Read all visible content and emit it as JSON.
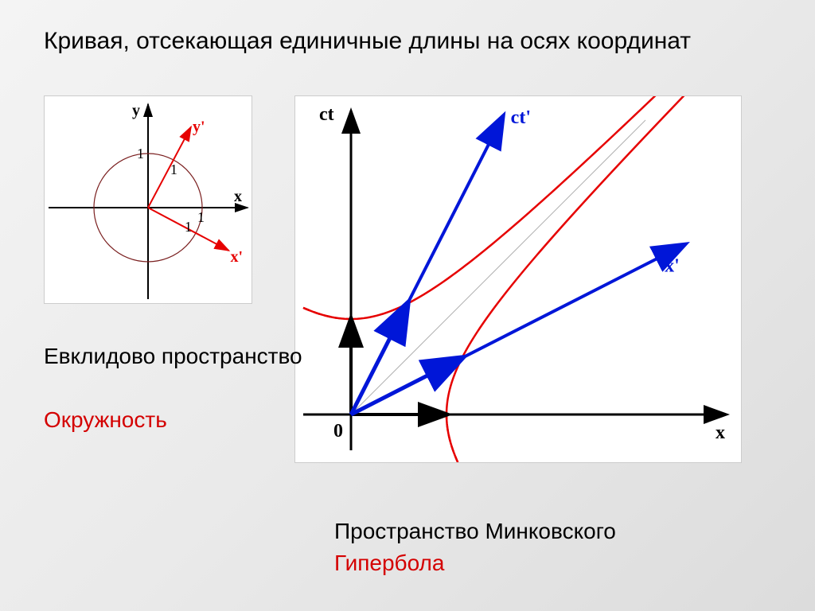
{
  "title": "Кривая, отсекающая единичные длины на осях координат",
  "euclid": {
    "caption": "Евклидово пространство",
    "curve_label": "Окружность",
    "axis_x": "x",
    "axis_y": "y",
    "axis_xp": "x'",
    "axis_yp": "y'",
    "unit_label": "1",
    "circle_radius": 68,
    "rot_angle_deg": 28,
    "axis_color": "#000000",
    "circle_color": "#7a1f1f",
    "rot_axis_color": "#e60000",
    "unit_font_size": 18,
    "axis_font_size": 20,
    "axis_weight": "bold",
    "stroke_width_axis": 2,
    "stroke_width_circle": 1.2,
    "stroke_width_rot": 2
  },
  "minkowski": {
    "caption": "Пространство Минковского",
    "curve_label": "Гипербола",
    "axis_x": "x",
    "axis_ct": "ct",
    "axis_xp": "x'",
    "axis_ctp": "ct'",
    "origin_label": "0",
    "axis_color": "#000000",
    "boosted_axis_color": "#0016d8",
    "hyperbola_color": "#e60000",
    "lightline_color": "#b0b0b0",
    "unit_len": 120,
    "xp_angle_deg": 27,
    "ctp_angle_deg": 63,
    "axis_font_size": 24,
    "axis_weight": "bold",
    "stroke_width_axis": 3,
    "stroke_width_boost": 4,
    "stroke_width_hyp": 2.5,
    "stroke_width_light": 1
  },
  "colors": {
    "caption_text": "#000000",
    "curve_text": "#d40000",
    "panel_bg": "#ffffff",
    "slide_bg_from": "#f4f4f4",
    "slide_bg_to": "#dcdcdc"
  },
  "typography": {
    "title_fontsize": 30,
    "caption_fontsize": 28,
    "font_family_ui": "Arial",
    "font_family_math": "Times New Roman"
  }
}
